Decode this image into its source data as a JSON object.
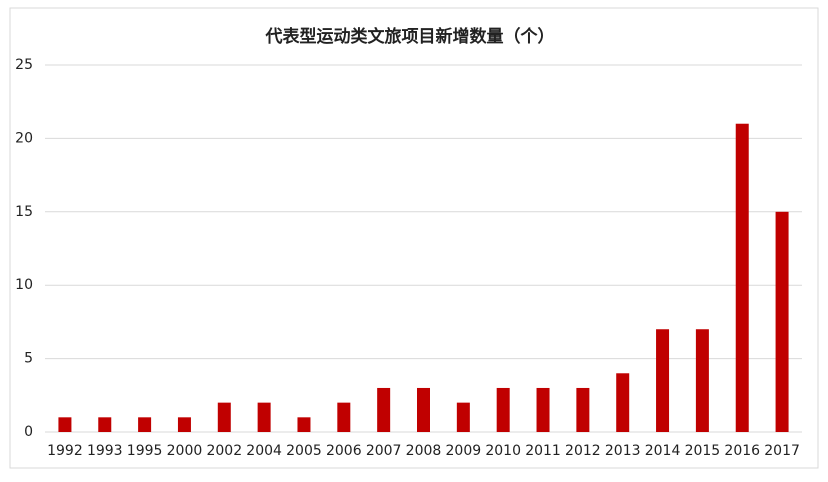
{
  "chart_data": {
    "type": "bar",
    "title": "代表型运动类文旅项目新增数量（个）",
    "categories": [
      "1992",
      "1993",
      "1995",
      "2000",
      "2002",
      "2004",
      "2005",
      "2006",
      "2007",
      "2008",
      "2009",
      "2010",
      "2011",
      "2012",
      "2013",
      "2014",
      "2015",
      "2016",
      "2017"
    ],
    "values": [
      1,
      1,
      1,
      1,
      2,
      2,
      1,
      2,
      3,
      3,
      2,
      3,
      3,
      3,
      4,
      7,
      7,
      21,
      15
    ],
    "color": "#c00000",
    "ylim": [
      0,
      25
    ],
    "yticks": [
      0,
      5,
      10,
      15,
      20,
      25
    ],
    "grid": true
  }
}
